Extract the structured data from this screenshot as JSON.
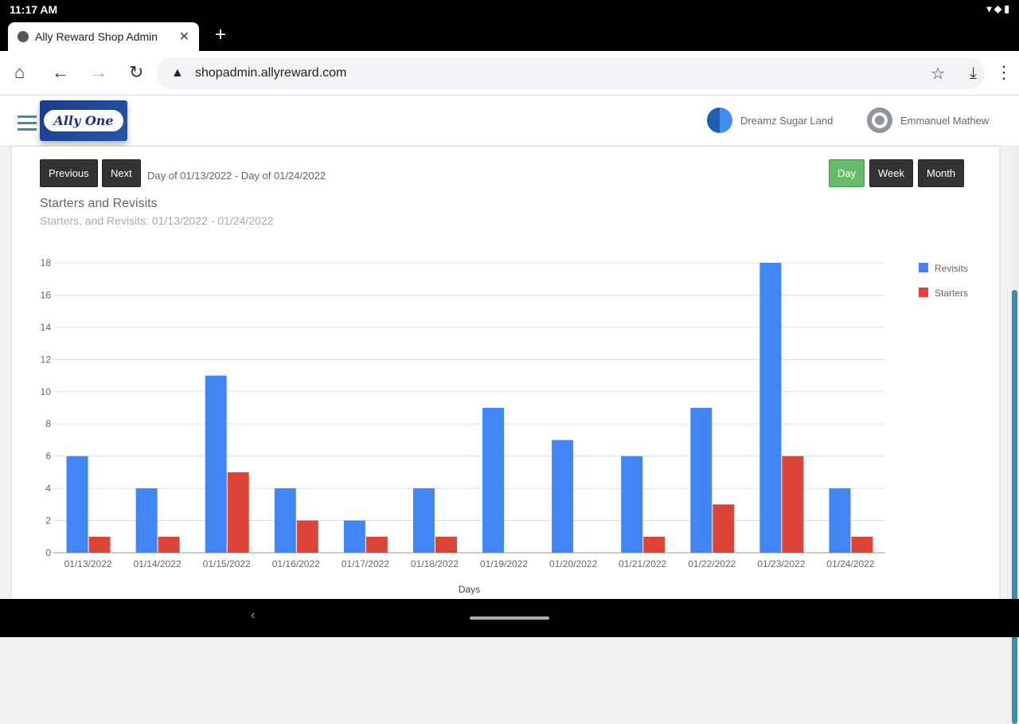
{
  "status": {
    "time": "11:17 AM"
  },
  "browser": {
    "tab_title": "Ally Reward Shop Admin",
    "url": "shopadmin.allyreward.com"
  },
  "header": {
    "logo_text": "Ally One",
    "store": "Dreamz Sugar Land",
    "user": "Emmanuel Mathew"
  },
  "controls": {
    "previous": "Previous",
    "next": "Next",
    "range": "Day of 01/13/2022 - Day of 01/24/2022",
    "day": "Day",
    "week": "Week",
    "month": "Month",
    "active": "Day"
  },
  "chart_data": {
    "type": "bar",
    "title": "Starters and Revisits",
    "subtitle": "Starters, and Revisits: 01/13/2022 - 01/24/2022",
    "xlabel": "Days",
    "ylabel": "",
    "ylim": [
      0,
      18
    ],
    "yticks": [
      0,
      2,
      4,
      6,
      8,
      10,
      12,
      14,
      16,
      18
    ],
    "grid": true,
    "legend": "right",
    "categories": [
      "01/13/2022",
      "01/14/2022",
      "01/15/2022",
      "01/16/2022",
      "01/17/2022",
      "01/18/2022",
      "01/19/2022",
      "01/20/2022",
      "01/21/2022",
      "01/22/2022",
      "01/23/2022",
      "01/24/2022"
    ],
    "series": [
      {
        "name": "Revisits",
        "color": "#4285f4",
        "values": [
          6,
          4,
          11,
          4,
          2,
          4,
          9,
          7,
          6,
          9,
          18,
          4
        ]
      },
      {
        "name": "Starters",
        "color": "#db4437",
        "values": [
          1,
          1,
          5,
          2,
          1,
          1,
          0,
          0,
          1,
          3,
          6,
          1
        ]
      }
    ]
  }
}
